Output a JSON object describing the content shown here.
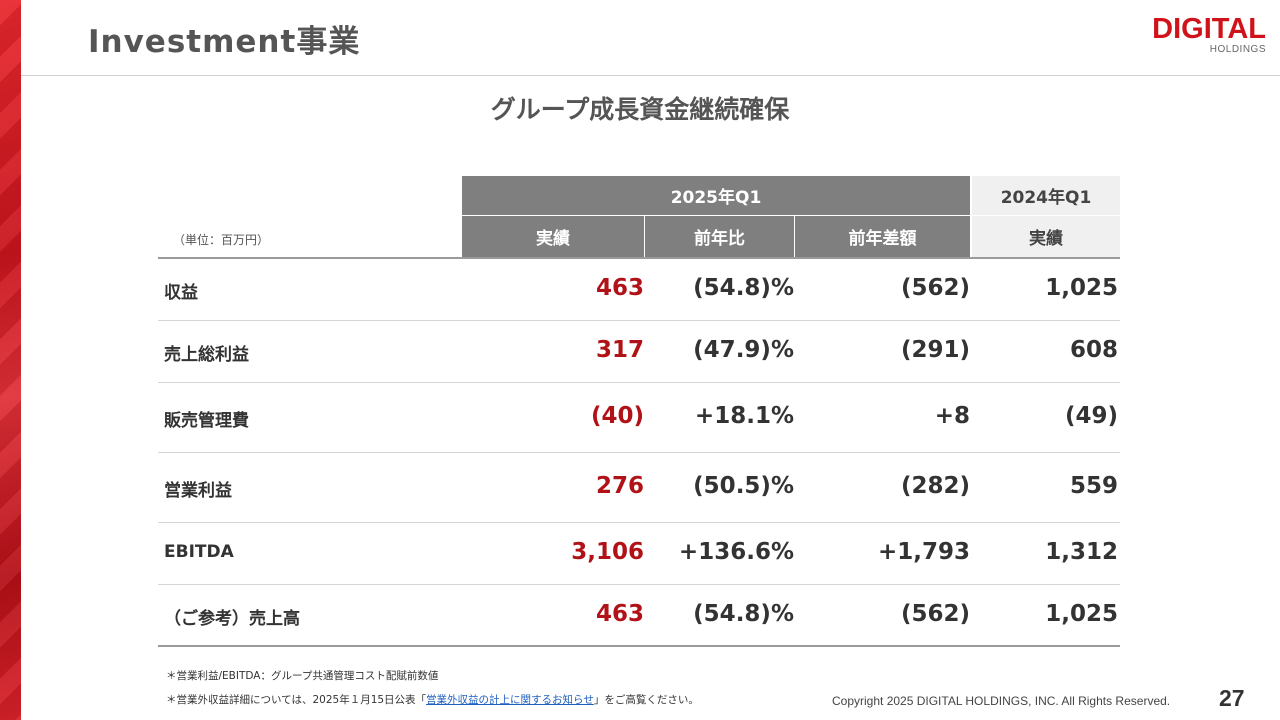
{
  "page": {
    "title": "Investment事業",
    "subtitle": "グループ成長資金継続確保",
    "page_number": "27",
    "copyright": "Copyright 2025 DIGITAL HOLDINGS, INC. All Rights Reserved."
  },
  "logo": {
    "main": "DIGITAL",
    "sub": "HOLDINGS"
  },
  "table": {
    "unit_label": "（単位：百万円）",
    "group_headers": {
      "current": "2025年Q1",
      "previous": "2024年Q1"
    },
    "column_headers": {
      "actual": "実績",
      "yoy_ratio": "前年比",
      "yoy_diff": "前年差額",
      "prev_actual": "実績"
    },
    "rows": [
      {
        "label": "収益",
        "actual": "463",
        "yoy_ratio": "(54.8)%",
        "yoy_diff": "(562)",
        "prev_actual": "1,025"
      },
      {
        "label": "売上総利益",
        "actual": "317",
        "yoy_ratio": "(47.9)%",
        "yoy_diff": "(291)",
        "prev_actual": "608"
      },
      {
        "label": "販売管理費",
        "actual": "(40)",
        "yoy_ratio": "+18.1%",
        "yoy_diff": "+8",
        "prev_actual": "(49)"
      },
      {
        "label": "営業利益",
        "actual": "276",
        "yoy_ratio": "(50.5)%",
        "yoy_diff": "(282)",
        "prev_actual": "559"
      },
      {
        "label": "EBITDA",
        "actual": "3,106",
        "yoy_ratio": "+136.6%",
        "yoy_diff": "+1,793",
        "prev_actual": "1,312"
      },
      {
        "label": "（ご参考）売上高",
        "actual": "463",
        "yoy_ratio": "(54.8)%",
        "yoy_diff": "(562)",
        "prev_actual": "1,025"
      }
    ]
  },
  "footnotes": {
    "note1": "＊営業利益/EBITDA：グループ共通管理コスト配賦前数値",
    "note2_prefix": "＊営業外収益詳細については、2025年１月15日公表「",
    "note2_link": "営業外収益の計上に関するお知らせ",
    "note2_suffix": "」をご高覧ください。"
  },
  "colors": {
    "accent_red": "#d0121b",
    "value_red": "#b01217",
    "header_gray": "#7f7f7f"
  }
}
